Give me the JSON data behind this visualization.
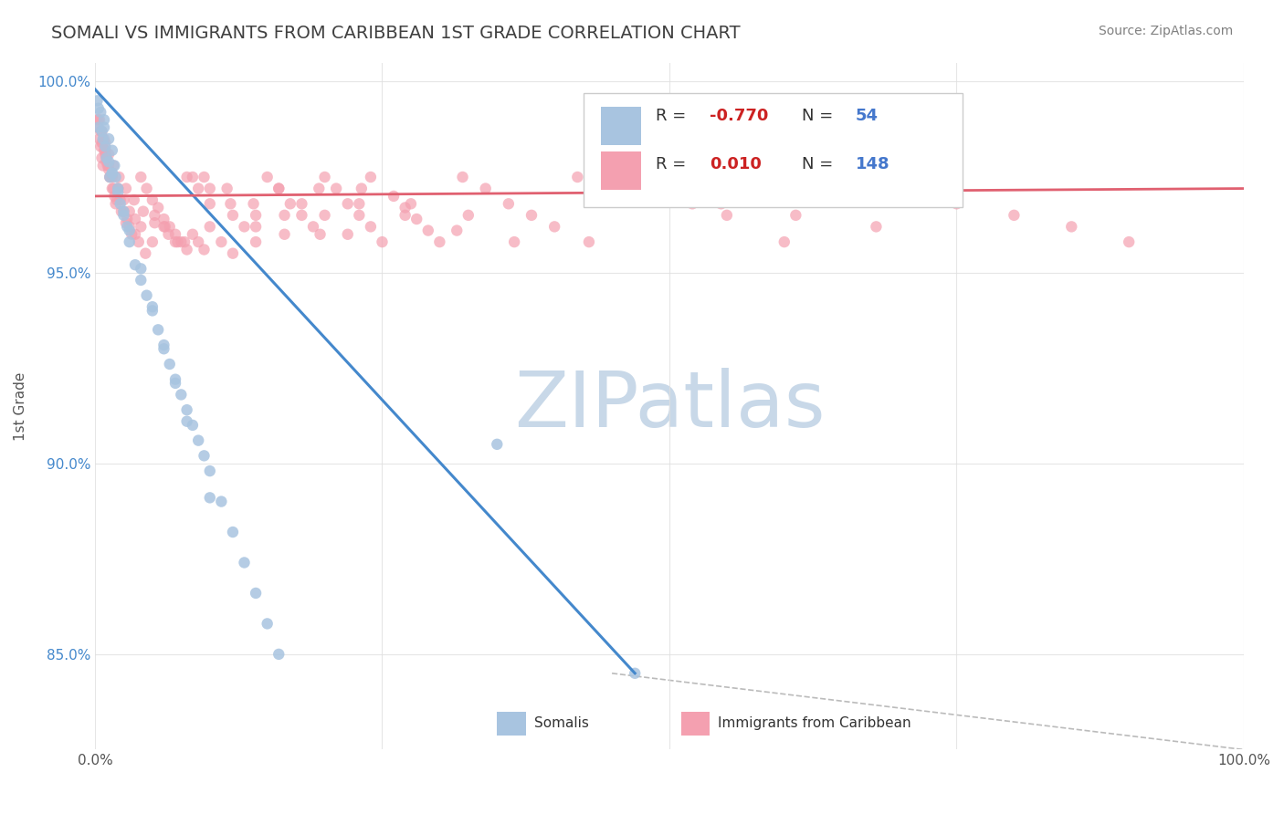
{
  "title": "SOMALI VS IMMIGRANTS FROM CARIBBEAN 1ST GRADE CORRELATION CHART",
  "source_text": "Source: ZipAtlas.com",
  "xlabel": "",
  "ylabel": "1st Grade",
  "xlim": [
    0.0,
    1.0
  ],
  "ylim": [
    0.825,
    1.005
  ],
  "yticks": [
    0.85,
    0.9,
    0.95,
    1.0
  ],
  "ytick_labels": [
    "85.0%",
    "90.0%",
    "95.0%",
    "100.0%"
  ],
  "xticks": [
    0.0,
    0.25,
    0.5,
    0.75,
    1.0
  ],
  "xtick_labels": [
    "0.0%",
    "",
    "",
    "",
    "100.0%"
  ],
  "legend_R1": "-0.770",
  "legend_N1": "54",
  "legend_R2": "0.010",
  "legend_N2": "148",
  "legend_label1": "Somalis",
  "legend_label2": "Immigrants from Caribbean",
  "color_blue": "#a8c4e0",
  "color_pink": "#f4a0b0",
  "trendline_blue": "#4488cc",
  "trendline_pink": "#e06070",
  "watermark": "ZIPatlas",
  "watermark_color": "#c8d8e8",
  "background_color": "#ffffff",
  "grid_color": "#e0e0e0",
  "title_color": "#404040",
  "source_color": "#808080",
  "somali_x": [
    0.002,
    0.003,
    0.005,
    0.007,
    0.008,
    0.01,
    0.012,
    0.013,
    0.015,
    0.017,
    0.018,
    0.02,
    0.022,
    0.025,
    0.028,
    0.03,
    0.035,
    0.04,
    0.045,
    0.05,
    0.055,
    0.06,
    0.065,
    0.07,
    0.075,
    0.08,
    0.085,
    0.09,
    0.095,
    0.1,
    0.11,
    0.12,
    0.13,
    0.14,
    0.15,
    0.16,
    0.003,
    0.006,
    0.009,
    0.012,
    0.015,
    0.02,
    0.025,
    0.03,
    0.04,
    0.05,
    0.06,
    0.07,
    0.08,
    0.1,
    0.008,
    0.015,
    0.35,
    0.47
  ],
  "somali_y": [
    0.995,
    0.988,
    0.992,
    0.985,
    0.99,
    0.98,
    0.985,
    0.975,
    0.982,
    0.978,
    0.975,
    0.972,
    0.968,
    0.965,
    0.962,
    0.958,
    0.952,
    0.948,
    0.944,
    0.94,
    0.935,
    0.93,
    0.926,
    0.922,
    0.918,
    0.914,
    0.91,
    0.906,
    0.902,
    0.898,
    0.89,
    0.882,
    0.874,
    0.866,
    0.858,
    0.85,
    0.993,
    0.987,
    0.983,
    0.979,
    0.976,
    0.971,
    0.966,
    0.961,
    0.951,
    0.941,
    0.931,
    0.921,
    0.911,
    0.891,
    0.988,
    0.976,
    0.905,
    0.845
  ],
  "carib_x": [
    0.002,
    0.003,
    0.004,
    0.005,
    0.006,
    0.007,
    0.008,
    0.009,
    0.01,
    0.012,
    0.013,
    0.015,
    0.017,
    0.018,
    0.02,
    0.022,
    0.025,
    0.028,
    0.03,
    0.035,
    0.04,
    0.045,
    0.05,
    0.055,
    0.06,
    0.065,
    0.07,
    0.075,
    0.08,
    0.085,
    0.09,
    0.095,
    0.1,
    0.11,
    0.12,
    0.13,
    0.14,
    0.15,
    0.16,
    0.17,
    0.18,
    0.19,
    0.2,
    0.21,
    0.22,
    0.23,
    0.24,
    0.25,
    0.26,
    0.27,
    0.28,
    0.29,
    0.3,
    0.32,
    0.34,
    0.36,
    0.38,
    0.4,
    0.43,
    0.46,
    0.49,
    0.52,
    0.55,
    0.006,
    0.008,
    0.01,
    0.012,
    0.015,
    0.02,
    0.025,
    0.03,
    0.035,
    0.04,
    0.05,
    0.06,
    0.07,
    0.08,
    0.09,
    0.1,
    0.12,
    0.14,
    0.16,
    0.18,
    0.2,
    0.22,
    0.24,
    0.003,
    0.005,
    0.007,
    0.009,
    0.011,
    0.013,
    0.016,
    0.019,
    0.023,
    0.027,
    0.032,
    0.038,
    0.044,
    0.052,
    0.061,
    0.072,
    0.085,
    0.1,
    0.118,
    0.14,
    0.165,
    0.195,
    0.23,
    0.27,
    0.315,
    0.365,
    0.42,
    0.48,
    0.545,
    0.61,
    0.68,
    0.6,
    0.65,
    0.7,
    0.75,
    0.8,
    0.85,
    0.9,
    0.004,
    0.006,
    0.009,
    0.012,
    0.016,
    0.021,
    0.027,
    0.034,
    0.042,
    0.052,
    0.064,
    0.078,
    0.095,
    0.115,
    0.138,
    0.165,
    0.196,
    0.232,
    0.275,
    0.325
  ],
  "carib_y": [
    0.99,
    0.988,
    0.985,
    0.983,
    0.98,
    0.978,
    0.985,
    0.982,
    0.979,
    0.977,
    0.975,
    0.972,
    0.97,
    0.968,
    0.972,
    0.969,
    0.966,
    0.964,
    0.962,
    0.96,
    0.975,
    0.972,
    0.969,
    0.967,
    0.964,
    0.962,
    0.96,
    0.958,
    0.956,
    0.96,
    0.958,
    0.956,
    0.962,
    0.958,
    0.955,
    0.962,
    0.958,
    0.975,
    0.972,
    0.968,
    0.965,
    0.962,
    0.975,
    0.972,
    0.968,
    0.965,
    0.962,
    0.958,
    0.97,
    0.967,
    0.964,
    0.961,
    0.958,
    0.975,
    0.972,
    0.968,
    0.965,
    0.962,
    0.958,
    0.975,
    0.972,
    0.968,
    0.965,
    0.984,
    0.982,
    0.98,
    0.978,
    0.975,
    0.972,
    0.969,
    0.966,
    0.964,
    0.962,
    0.958,
    0.962,
    0.958,
    0.975,
    0.972,
    0.968,
    0.965,
    0.962,
    0.972,
    0.968,
    0.965,
    0.96,
    0.975,
    0.99,
    0.987,
    0.984,
    0.981,
    0.978,
    0.975,
    0.972,
    0.969,
    0.966,
    0.963,
    0.96,
    0.958,
    0.955,
    0.965,
    0.962,
    0.958,
    0.975,
    0.972,
    0.968,
    0.965,
    0.96,
    0.972,
    0.968,
    0.965,
    0.961,
    0.958,
    0.975,
    0.972,
    0.968,
    0.965,
    0.962,
    0.958,
    0.975,
    0.972,
    0.968,
    0.965,
    0.962,
    0.958,
    0.99,
    0.987,
    0.984,
    0.981,
    0.978,
    0.975,
    0.972,
    0.969,
    0.966,
    0.963,
    0.96,
    0.958,
    0.975,
    0.972,
    0.968,
    0.965,
    0.96,
    0.972,
    0.968,
    0.965
  ]
}
